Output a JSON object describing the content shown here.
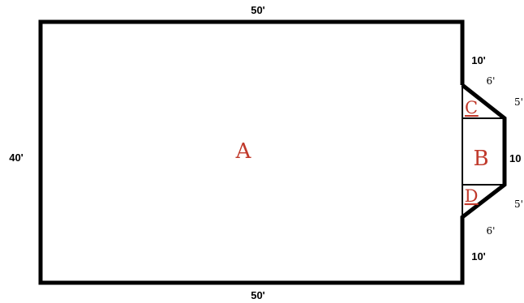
{
  "diagram": {
    "colors": {
      "outline": "#000000",
      "region_label": "#c0392b",
      "dimension_text": "#000000"
    },
    "dimensions": {
      "top": "50'",
      "bottom": "50'",
      "left": "40'",
      "right_upper": "10'",
      "right_lower": "10'",
      "bump_right": "10",
      "slant_upper": "6'",
      "slant_lower": "6'",
      "bump_top_edge": "5'",
      "bump_bottom_edge": "5'"
    },
    "regions": {
      "a": "A",
      "b": "B",
      "c": "C",
      "d": "D"
    }
  }
}
